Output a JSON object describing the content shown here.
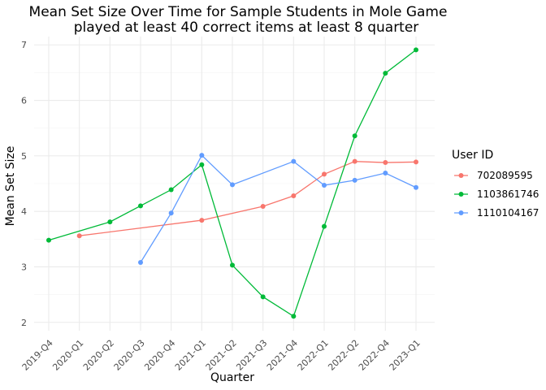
{
  "chart_data": {
    "type": "line",
    "title_line1": "Mean Set Size Over Time for Sample Students in Mole Game",
    "title_line2": "played at least 40 correct items at least 8 quarter",
    "xlabel": "Quarter",
    "ylabel": "Mean Set Size",
    "categories": [
      "2019-Q4",
      "2020-Q1",
      "2020-Q2",
      "2020-Q3",
      "2020-Q4",
      "2021-Q1",
      "2021-Q2",
      "2021-Q3",
      "2021-Q4",
      "2022-Q1",
      "2022-Q2",
      "2022-Q4",
      "2023-Q1"
    ],
    "ylim": [
      1.85,
      7.15
    ],
    "yticks": [
      2,
      3,
      4,
      5,
      6,
      7
    ],
    "grid": true,
    "legend": {
      "title": "User ID",
      "placement": "right"
    },
    "series": [
      {
        "name": "702089595",
        "color": "#F8766D",
        "points": [
          [
            "2020-Q1",
            3.56
          ],
          [
            "2021-Q1",
            3.84
          ],
          [
            "2021-Q3",
            4.09
          ],
          [
            "2021-Q4",
            4.28
          ],
          [
            "2022-Q1",
            4.67
          ],
          [
            "2022-Q2",
            4.9
          ],
          [
            "2022-Q4",
            4.88
          ],
          [
            "2023-Q1",
            4.89
          ]
        ]
      },
      {
        "name": "1103861746",
        "color": "#00BA38",
        "points": [
          [
            "2019-Q4",
            3.48
          ],
          [
            "2020-Q2",
            3.81
          ],
          [
            "2020-Q3",
            4.1
          ],
          [
            "2020-Q4",
            4.39
          ],
          [
            "2021-Q1",
            4.84
          ],
          [
            "2021-Q2",
            3.03
          ],
          [
            "2021-Q3",
            2.46
          ],
          [
            "2021-Q4",
            2.11
          ],
          [
            "2022-Q1",
            3.73
          ],
          [
            "2022-Q2",
            5.36
          ],
          [
            "2022-Q4",
            6.49
          ],
          [
            "2023-Q1",
            6.91
          ]
        ]
      },
      {
        "name": "1110104167",
        "color": "#619CFF",
        "points": [
          [
            "2020-Q3",
            3.08
          ],
          [
            "2020-Q4",
            3.97
          ],
          [
            "2021-Q1",
            5.01
          ],
          [
            "2021-Q2",
            4.48
          ],
          [
            "2021-Q4",
            4.9
          ],
          [
            "2022-Q1",
            4.47
          ],
          [
            "2022-Q2",
            4.56
          ],
          [
            "2022-Q4",
            4.69
          ],
          [
            "2023-Q1",
            4.43
          ]
        ]
      }
    ]
  }
}
